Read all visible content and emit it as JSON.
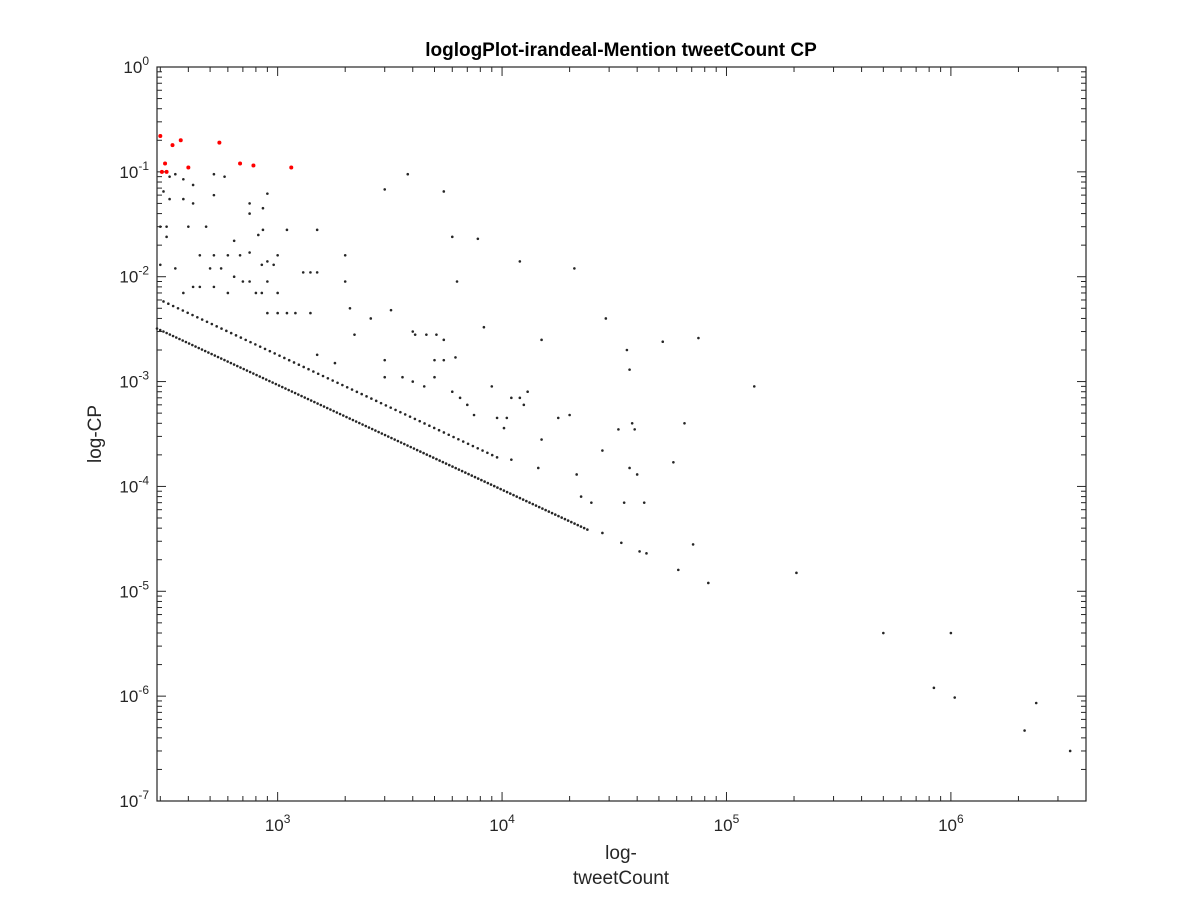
{
  "chart_data": {
    "type": "scatter",
    "title": "loglogPlot-irandeal-Mention tweetCount CP",
    "xlabel_lines": [
      "log-",
      "tweetCount"
    ],
    "ylabel": "log-CP",
    "xscale": "log",
    "yscale": "log",
    "xlim": [
      290,
      4000000
    ],
    "ylim": [
      1e-07,
      1
    ],
    "xticks": [
      {
        "base": "10",
        "exp": "3",
        "value": 1000
      },
      {
        "base": "10",
        "exp": "4",
        "value": 10000
      },
      {
        "base": "10",
        "exp": "5",
        "value": 100000
      },
      {
        "base": "10",
        "exp": "6",
        "value": 1000000
      }
    ],
    "yticks": [
      {
        "base": "10",
        "exp": "0",
        "value": 1
      },
      {
        "base": "10",
        "exp": "-1",
        "value": 0.1
      },
      {
        "base": "10",
        "exp": "-2",
        "value": 0.01
      },
      {
        "base": "10",
        "exp": "-3",
        "value": 0.001
      },
      {
        "base": "10",
        "exp": "-4",
        "value": 0.0001
      },
      {
        "base": "10",
        "exp": "-5",
        "value": 1e-05
      },
      {
        "base": "10",
        "exp": "-6",
        "value": 1e-06
      },
      {
        "base": "10",
        "exp": "-7",
        "value": 1e-07
      }
    ],
    "grid": false,
    "series": [
      {
        "color": "#262626",
        "points": [
          [
            330,
            0.09
          ],
          [
            350,
            0.095
          ],
          [
            380,
            0.085
          ],
          [
            420,
            0.075
          ],
          [
            520,
            0.095
          ],
          [
            580,
            0.09
          ],
          [
            3000,
            0.068
          ],
          [
            3800,
            0.095
          ],
          [
            5500,
            0.065
          ],
          [
            310,
            0.065
          ],
          [
            330,
            0.055
          ],
          [
            380,
            0.055
          ],
          [
            420,
            0.05
          ],
          [
            520,
            0.06
          ],
          [
            750,
            0.05
          ],
          [
            860,
            0.045
          ],
          [
            900,
            0.062
          ],
          [
            300,
            0.03
          ],
          [
            320,
            0.03
          ],
          [
            400,
            0.03
          ],
          [
            480,
            0.03
          ],
          [
            640,
            0.022
          ],
          [
            750,
            0.04
          ],
          [
            820,
            0.025
          ],
          [
            860,
            0.028
          ],
          [
            1100,
            0.028
          ],
          [
            1500,
            0.028
          ],
          [
            320,
            0.024
          ],
          [
            450,
            0.016
          ],
          [
            520,
            0.016
          ],
          [
            600,
            0.016
          ],
          [
            680,
            0.016
          ],
          [
            750,
            0.017
          ],
          [
            1000,
            0.016
          ],
          [
            2000,
            0.016
          ],
          [
            6000,
            0.024
          ],
          [
            7800,
            0.023
          ],
          [
            300,
            0.013
          ],
          [
            350,
            0.012
          ],
          [
            420,
            0.008
          ],
          [
            500,
            0.012
          ],
          [
            560,
            0.012
          ],
          [
            640,
            0.01
          ],
          [
            850,
            0.013
          ],
          [
            900,
            0.014
          ],
          [
            960,
            0.013
          ],
          [
            1300,
            0.011
          ],
          [
            1400,
            0.011
          ],
          [
            1500,
            0.011
          ],
          [
            380,
            0.007
          ],
          [
            450,
            0.008
          ],
          [
            520,
            0.008
          ],
          [
            600,
            0.007
          ],
          [
            700,
            0.009
          ],
          [
            750,
            0.009
          ],
          [
            800,
            0.007
          ],
          [
            850,
            0.007
          ],
          [
            900,
            0.009
          ],
          [
            1000,
            0.007
          ],
          [
            2000,
            0.009
          ],
          [
            2100,
            0.005
          ],
          [
            6300,
            0.009
          ],
          [
            12000,
            0.014
          ],
          [
            21000,
            0.012
          ],
          [
            900,
            0.0045
          ],
          [
            1000,
            0.0045
          ],
          [
            1100,
            0.0045
          ],
          [
            1200,
            0.0045
          ],
          [
            1400,
            0.0045
          ],
          [
            2600,
            0.004
          ],
          [
            3200,
            0.0048
          ],
          [
            2200,
            0.0028
          ],
          [
            4000,
            0.003
          ],
          [
            4100,
            0.0028
          ],
          [
            4600,
            0.0028
          ],
          [
            5100,
            0.0028
          ],
          [
            5500,
            0.0025
          ],
          [
            8300,
            0.0033
          ],
          [
            15000,
            0.0025
          ],
          [
            29000,
            0.004
          ],
          [
            36000,
            0.002
          ],
          [
            37000,
            0.0013
          ],
          [
            52000,
            0.0024
          ],
          [
            75000,
            0.0026
          ],
          [
            6200,
            0.0017
          ],
          [
            1500,
            0.0018
          ],
          [
            1800,
            0.0015
          ],
          [
            3000,
            0.0016
          ],
          [
            5000,
            0.0016
          ],
          [
            5500,
            0.0016
          ],
          [
            133000,
            0.0009
          ],
          [
            3000,
            0.0011
          ],
          [
            3600,
            0.0011
          ],
          [
            4000,
            0.001
          ],
          [
            4500,
            0.0009
          ],
          [
            5000,
            0.0011
          ],
          [
            6000,
            0.0008
          ],
          [
            6500,
            0.0007
          ],
          [
            7000,
            0.0006
          ],
          [
            9000,
            0.0009
          ],
          [
            11000,
            0.0007
          ],
          [
            12000,
            0.0007
          ],
          [
            13000,
            0.0008
          ],
          [
            12500,
            0.0006
          ],
          [
            7500,
            0.00048
          ],
          [
            9500,
            0.00045
          ],
          [
            10500,
            0.00045
          ],
          [
            10200,
            0.00036
          ],
          [
            15000,
            0.00028
          ],
          [
            17800,
            0.00045
          ],
          [
            20000,
            0.00048
          ],
          [
            33000,
            0.00035
          ],
          [
            38000,
            0.0004
          ],
          [
            65000,
            0.0004
          ],
          [
            39000,
            0.00035
          ],
          [
            11000,
            0.00018
          ],
          [
            14500,
            0.00015
          ],
          [
            21500,
            0.00013
          ],
          [
            28000,
            0.00022
          ],
          [
            37000,
            0.00015
          ],
          [
            40000,
            0.00013
          ],
          [
            58000,
            0.00017
          ],
          [
            22500,
            8e-05
          ],
          [
            25000,
            7e-05
          ],
          [
            35000,
            7e-05
          ],
          [
            43000,
            7e-05
          ],
          [
            28000,
            3.6e-05
          ],
          [
            34000,
            2.9e-05
          ],
          [
            41000,
            2.4e-05
          ],
          [
            44000,
            2.3e-05
          ],
          [
            71000,
            2.8e-05
          ],
          [
            61000,
            1.6e-05
          ],
          [
            83000,
            1.2e-05
          ],
          [
            205000,
            1.5e-05
          ],
          [
            500000,
            4e-06
          ],
          [
            1000000,
            4e-06
          ],
          [
            840000,
            1.2e-06
          ],
          [
            1040000,
            9.7e-07
          ],
          [
            2130000,
            4.7e-07
          ],
          [
            2400000,
            8.6e-07
          ],
          [
            3400000,
            3e-07
          ]
        ],
        "lines": [
          {
            "x_start": 290,
            "x_end": 24000,
            "slope": -1,
            "intercept": 0.93,
            "n": 135
          },
          {
            "x_start": 310,
            "x_end": 9500,
            "slope": -1,
            "intercept": 1.8,
            "n": 70
          }
        ]
      },
      {
        "color": "#ff0000",
        "points": [
          [
            300,
            0.22
          ],
          [
            305,
            0.1
          ],
          [
            315,
            0.12
          ],
          [
            320,
            0.1
          ],
          [
            340,
            0.18
          ],
          [
            370,
            0.2
          ],
          [
            400,
            0.11
          ],
          [
            550,
            0.19
          ],
          [
            680,
            0.12
          ],
          [
            780,
            0.115
          ],
          [
            1150,
            0.11
          ]
        ]
      }
    ]
  }
}
